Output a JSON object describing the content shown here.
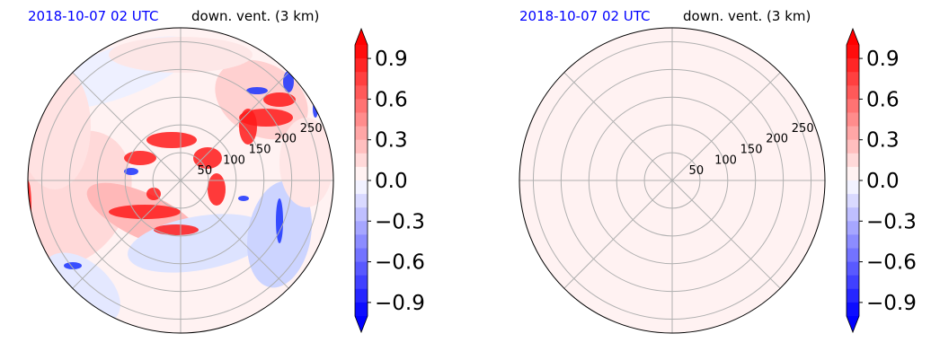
{
  "panels": [
    {
      "title_left": "2018-10-07 02 UTC",
      "title_right": "down. vent. (3 km)",
      "title_left_color": "#0000ff",
      "has_field": true
    },
    {
      "title_left": "2018-10-07 02 UTC",
      "title_right": "down. vent. (3 km)",
      "title_left_color": "#0000ff",
      "has_field": false
    }
  ],
  "chart_data": [
    {
      "type": "heatmap",
      "projection": "polar",
      "title": "down. vent. (3 km)",
      "subtitle": "2018-10-07 02 UTC",
      "radial_ticks": [
        50,
        100,
        150,
        200,
        250
      ],
      "colorbar": {
        "ticks": [
          -0.9,
          -0.6,
          -0.3,
          0.0,
          0.3,
          0.6,
          0.9
        ],
        "tick_labels": [
          "−0.9",
          "−0.6",
          "−0.3",
          "0.0",
          "0.3",
          "0.6",
          "0.9"
        ],
        "range": [
          -1.0,
          1.0
        ],
        "levels": 20,
        "colormap": "bwr",
        "extend": "both"
      },
      "field_summary": "mostly near zero with positive (red) ring near r≈50–100 and scattered positive/negative cells in the northeast and east"
    },
    {
      "type": "heatmap",
      "projection": "polar",
      "title": "down. vent. (3 km)",
      "subtitle": "2018-10-07 02 UTC",
      "radial_ticks": [
        50,
        100,
        150,
        200,
        250
      ],
      "colorbar": {
        "ticks": [
          -0.9,
          -0.6,
          -0.3,
          0.0,
          0.3,
          0.6,
          0.9
        ],
        "tick_labels": [
          "−0.9",
          "−0.6",
          "−0.3",
          "0.0",
          "0.3",
          "0.6",
          "0.9"
        ],
        "range": [
          -1.0,
          1.0
        ],
        "levels": 20,
        "colormap": "bwr",
        "extend": "both"
      },
      "field_summary": "uniform near-zero (very light pink) field"
    }
  ]
}
